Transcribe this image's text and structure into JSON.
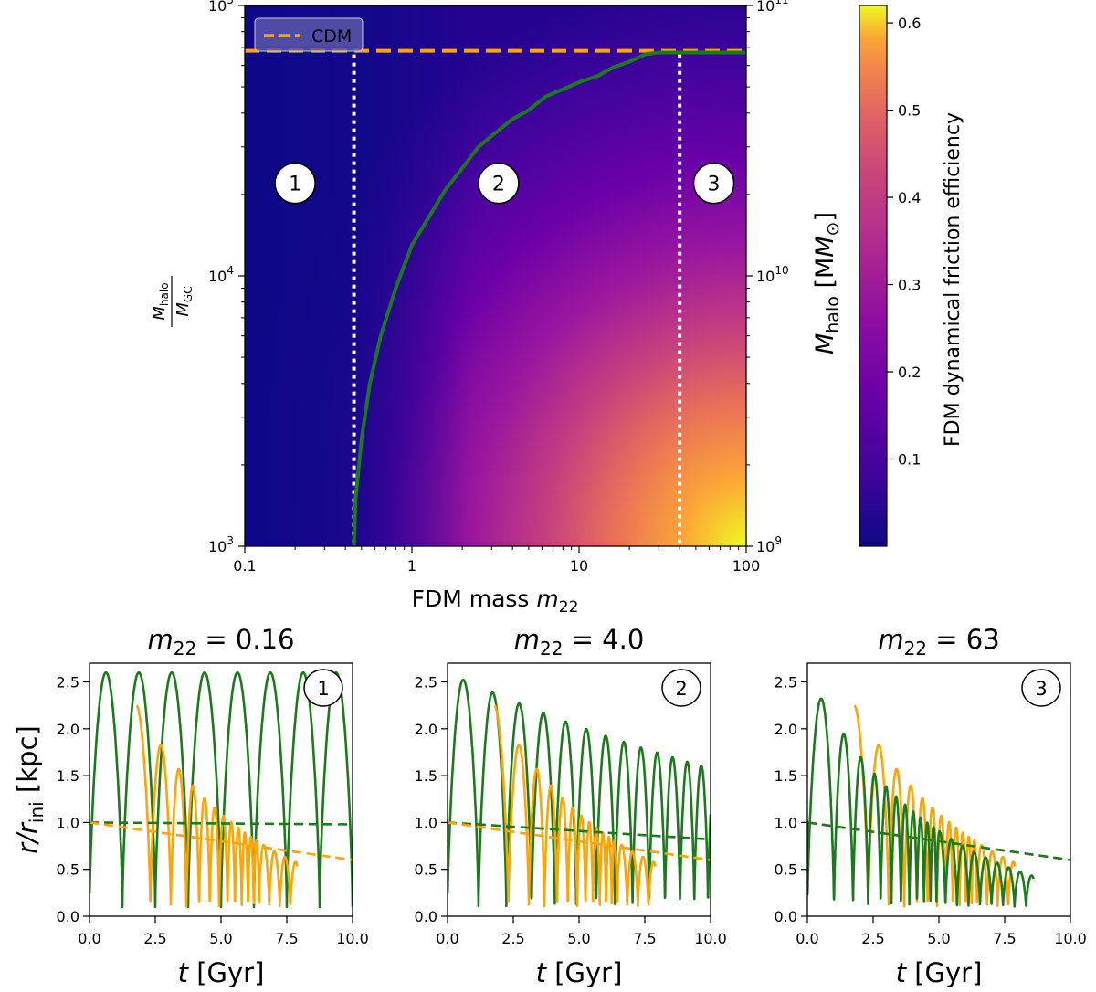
{
  "chart_data": [
    {
      "type": "heatmap",
      "x_scale": "log",
      "y_scale": "log",
      "xlim": [
        0.1,
        100
      ],
      "ylim": [
        1000,
        100000
      ],
      "right_ylim": [
        1000000000,
        100000000000
      ],
      "xlabel_text": "FDM mass ",
      "xlabel_math": "m",
      "xlabel_sub": "22",
      "ylabel_num": "M",
      "ylabel_num_sub": "halo",
      "ylabel_den": "M",
      "ylabel_den_sub": "GC",
      "right_ylabel_main": "M",
      "right_ylabel_sub": "halo",
      "right_ylabel_unit": " [M",
      "right_ylabel_unit_sub": "⊙",
      "right_ylabel_close": "]",
      "x_ticks": [
        {
          "value": 0.1,
          "label": "0.1"
        },
        {
          "value": 1,
          "label": "1"
        },
        {
          "value": 10,
          "label": "10"
        },
        {
          "value": 100,
          "label": "100"
        }
      ],
      "y_ticks": [
        {
          "value": 1000,
          "base": "10",
          "exp": "3"
        },
        {
          "value": 10000,
          "base": "10",
          "exp": "4"
        },
        {
          "value": 100000,
          "base": "10",
          "exp": "5"
        }
      ],
      "right_y_ticks": [
        {
          "value": 1000,
          "base": "10",
          "exp": "9"
        },
        {
          "value": 10000,
          "base": "10",
          "exp": "10"
        },
        {
          "value": 100000,
          "base": "10",
          "exp": "11"
        }
      ],
      "colorbar": {
        "label": "FDM dynamical friction efficiency",
        "range": [
          0.0,
          0.62
        ],
        "ticks": [
          "0.1",
          "0.2",
          "0.3",
          "0.4",
          "0.5",
          "0.6"
        ],
        "tick_values": [
          0.1,
          0.2,
          0.3,
          0.4,
          0.5,
          0.6
        ],
        "colormap": "plasma"
      },
      "legend": {
        "label": "CDM",
        "color": "#ffa500",
        "position": "top-left"
      },
      "cdm_line_y": 68000,
      "boundary_lines_x": [
        0.45,
        40
      ],
      "region_labels": [
        {
          "label": "1",
          "x": 0.2,
          "y": 22000
        },
        {
          "label": "2",
          "x": 3.3,
          "y": 22000
        },
        {
          "label": "3",
          "x": 64,
          "y": 22000
        }
      ],
      "green_curve": {
        "color": "#1b7a1b",
        "x": [
          0.45,
          0.46,
          0.5,
          0.56,
          0.65,
          0.8,
          1.0,
          1.3,
          1.6,
          2.0,
          2.5,
          3.2,
          4.0,
          5.0,
          6.3,
          8.0,
          10,
          13,
          16,
          20,
          25,
          30,
          40,
          100
        ],
        "y": [
          1000,
          1500,
          2500,
          4000,
          6000,
          9000,
          13000,
          17000,
          21000,
          25000,
          30000,
          34000,
          38000,
          41000,
          46000,
          49000,
          52000,
          55000,
          59000,
          62000,
          66000,
          67000,
          67000,
          67000
        ]
      }
    },
    {
      "type": "line",
      "title_math": "m",
      "title_sub": "22",
      "title_value": " = 0.16",
      "region_label": "1",
      "xlim": [
        0,
        10
      ],
      "ylim": [
        0,
        2.7
      ],
      "x_ticks": [
        "0.0",
        "2.5",
        "5.0",
        "7.5",
        "10.0"
      ],
      "y_ticks": [
        "0.0",
        "0.5",
        "1.0",
        "1.5",
        "2.0",
        "2.5"
      ],
      "xlabel": "t",
      "xlabel_unit": "   [Gyr]",
      "ylabel_prefix": "r/r",
      "ylabel_sub": "ini",
      "ylabel_unit": "  [kpc]",
      "series": [
        {
          "color": "#1b7a1b",
          "style": "solid",
          "amp": 2.6,
          "period": 1.25,
          "min_r": 0.1,
          "decay": 0.0,
          "end": 10.0
        },
        {
          "color": "#ffa500",
          "style": "solid",
          "amp": 2.25,
          "period": 1.15,
          "min_r": 0.1,
          "decay": 0.45,
          "end": 7.9,
          "start": 1.8
        },
        {
          "color": "#1b7a1b",
          "style": "dashed",
          "x": [
            0,
            10
          ],
          "y": [
            1.0,
            0.98
          ]
        },
        {
          "color": "#ffa500",
          "style": "dashed",
          "x": [
            0,
            2.5,
            5,
            7.5,
            10
          ],
          "y": [
            1.0,
            0.9,
            0.8,
            0.7,
            0.6
          ]
        }
      ]
    },
    {
      "type": "line",
      "title_math": "m",
      "title_sub": "22",
      "title_value": " = 4.0",
      "region_label": "2",
      "xlim": [
        0,
        10
      ],
      "ylim": [
        0,
        2.7
      ],
      "x_ticks": [
        "0.0",
        "2.5",
        "5.0",
        "7.5",
        "10.0"
      ],
      "y_ticks": [
        "0.0",
        "0.5",
        "1.0",
        "1.5",
        "2.0",
        "2.5"
      ],
      "xlabel": "t",
      "xlabel_unit": "   [Gyr]",
      "series": [
        {
          "color": "#1b7a1b",
          "style": "solid",
          "amp": 2.6,
          "period": 1.25,
          "min_r": 0.1,
          "decay": 0.1,
          "end": 10.0
        },
        {
          "color": "#ffa500",
          "style": "solid",
          "amp": 2.25,
          "period": 1.15,
          "min_r": 0.1,
          "decay": 0.45,
          "end": 7.9,
          "start": 1.8
        },
        {
          "color": "#1b7a1b",
          "style": "dashed",
          "x": [
            0,
            10
          ],
          "y": [
            1.0,
            0.82
          ]
        },
        {
          "color": "#ffa500",
          "style": "dashed",
          "x": [
            0,
            2.5,
            5,
            7.5,
            10
          ],
          "y": [
            1.0,
            0.9,
            0.8,
            0.7,
            0.6
          ]
        }
      ]
    },
    {
      "type": "line",
      "title_math": "m",
      "title_sub": "22",
      "title_value": " = 63",
      "region_label": "3",
      "xlim": [
        0,
        10
      ],
      "ylim": [
        0,
        2.7
      ],
      "x_ticks": [
        "0.0",
        "2.5",
        "5.0",
        "7.5",
        "10.0"
      ],
      "y_ticks": [
        "0.0",
        "0.5",
        "1.0",
        "1.5",
        "2.0",
        "2.5"
      ],
      "xlabel": "t",
      "xlabel_unit": "   [Gyr]",
      "series": [
        {
          "color": "#ffa500",
          "style": "solid",
          "amp": 2.25,
          "period": 1.15,
          "min_r": 0.1,
          "decay": 0.45,
          "end": 7.9,
          "start": 1.8
        },
        {
          "color": "#1b7a1b",
          "style": "solid",
          "amp": 2.6,
          "period": 1.25,
          "min_r": 0.1,
          "decay": 0.42,
          "end": 8.6
        },
        {
          "color": "#ffa500",
          "style": "dashed",
          "x": [
            0,
            2.5,
            5,
            7.5,
            10
          ],
          "y": [
            1.0,
            0.9,
            0.8,
            0.7,
            0.6
          ]
        },
        {
          "color": "#1b7a1b",
          "style": "dashed",
          "x": [
            0,
            2.5,
            5,
            7.5,
            10
          ],
          "y": [
            1.0,
            0.9,
            0.8,
            0.7,
            0.6
          ]
        }
      ]
    }
  ]
}
